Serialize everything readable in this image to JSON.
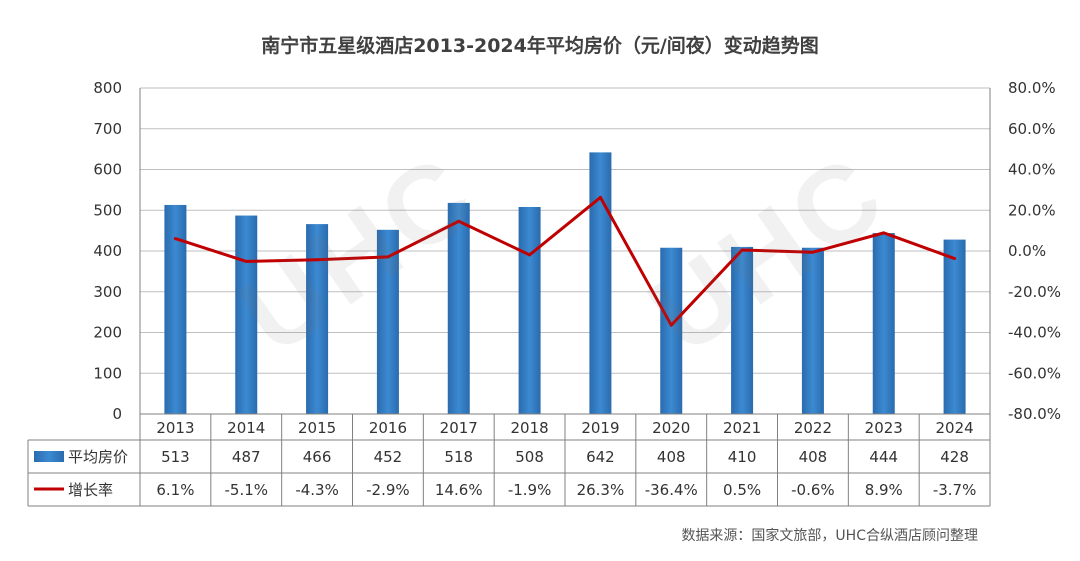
{
  "chart_data": {
    "type": "bar",
    "title": "南宁市五星级酒店2013-2024年平均房价（元/间夜）变动趋势图",
    "categories": [
      "2013",
      "2014",
      "2015",
      "2016",
      "2017",
      "2018",
      "2019",
      "2020",
      "2021",
      "2022",
      "2023",
      "2024"
    ],
    "series": [
      {
        "name": "平均房价",
        "type": "bar",
        "axis": "left",
        "color": "#2E75B6",
        "values": [
          513,
          487,
          466,
          452,
          518,
          508,
          642,
          408,
          410,
          408,
          444,
          428
        ]
      },
      {
        "name": "增长率",
        "type": "line",
        "axis": "right",
        "color": "#C00000",
        "values": [
          6.1,
          -5.1,
          -4.3,
          -2.9,
          14.6,
          -1.9,
          26.3,
          -36.4,
          0.5,
          -0.6,
          8.9,
          -3.7
        ]
      }
    ],
    "table_values": [
      [
        "513",
        "487",
        "466",
        "452",
        "518",
        "508",
        "642",
        "408",
        "410",
        "408",
        "444",
        "428"
      ],
      [
        "6.1%",
        "-5.1%",
        "-4.3%",
        "-2.9%",
        "14.6%",
        "-1.9%",
        "26.3%",
        "-36.4%",
        "0.5%",
        "-0.6%",
        "8.9%",
        "-3.7%"
      ]
    ],
    "y_left": {
      "min": 0,
      "max": 800,
      "step": 100,
      "ticks": [
        "0",
        "100",
        "200",
        "300",
        "400",
        "500",
        "600",
        "700",
        "800"
      ]
    },
    "y_right": {
      "min": -80,
      "max": 80,
      "step": 20,
      "ticks": [
        "-80.0%",
        "-60.0%",
        "-40.0%",
        "-20.0%",
        "0.0%",
        "20.0%",
        "40.0%",
        "60.0%",
        "80.0%"
      ]
    },
    "grid": true,
    "legend": "data-table",
    "source": "数据来源：国家文旅部，UHC合纵酒店顾问整理"
  },
  "watermark": "UHC"
}
